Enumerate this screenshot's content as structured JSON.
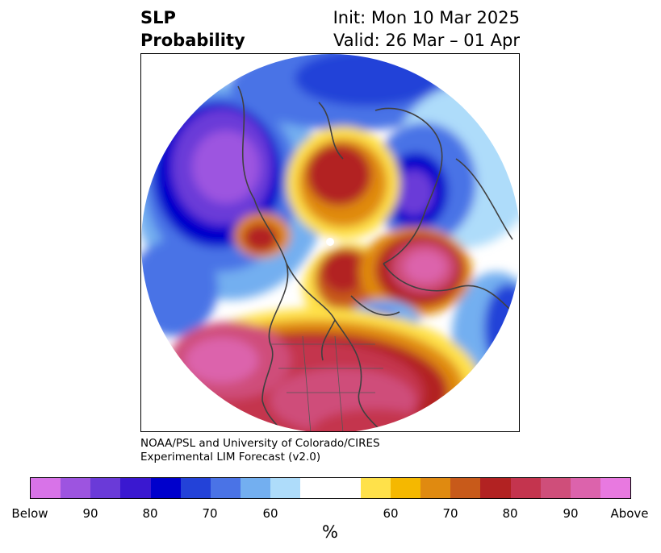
{
  "title": {
    "left_line1": "SLP",
    "left_line2": "Probability",
    "right_line1": "Init: Mon 10 Mar 2025",
    "right_line2": "Valid: 26 Mar – 01 Apr"
  },
  "credit": {
    "line1": "NOAA/PSL and University of Colorado/CIRES",
    "line2": "Experimental LIM Forecast (v2.0)"
  },
  "colorbar": {
    "unit": "%",
    "colors": [
      "#d873e8",
      "#9d54e0",
      "#6a3ad8",
      "#3a18d0",
      "#0000cc",
      "#2342d8",
      "#4a73e6",
      "#73aff0",
      "#aedcfa",
      "#ffffff",
      "#ffffff",
      "#ffe14a",
      "#f5b800",
      "#e08a10",
      "#c85a1a",
      "#b22222",
      "#c4344e",
      "#cf4e7a",
      "#dc63ac",
      "#e879e0"
    ],
    "tick_labels": [
      "Below",
      "90",
      "80",
      "70",
      "60",
      "60",
      "70",
      "80",
      "90",
      "Above"
    ]
  },
  "map": {
    "projection": "north-polar-stereographic",
    "variable": "sea-level-pressure-probability"
  }
}
